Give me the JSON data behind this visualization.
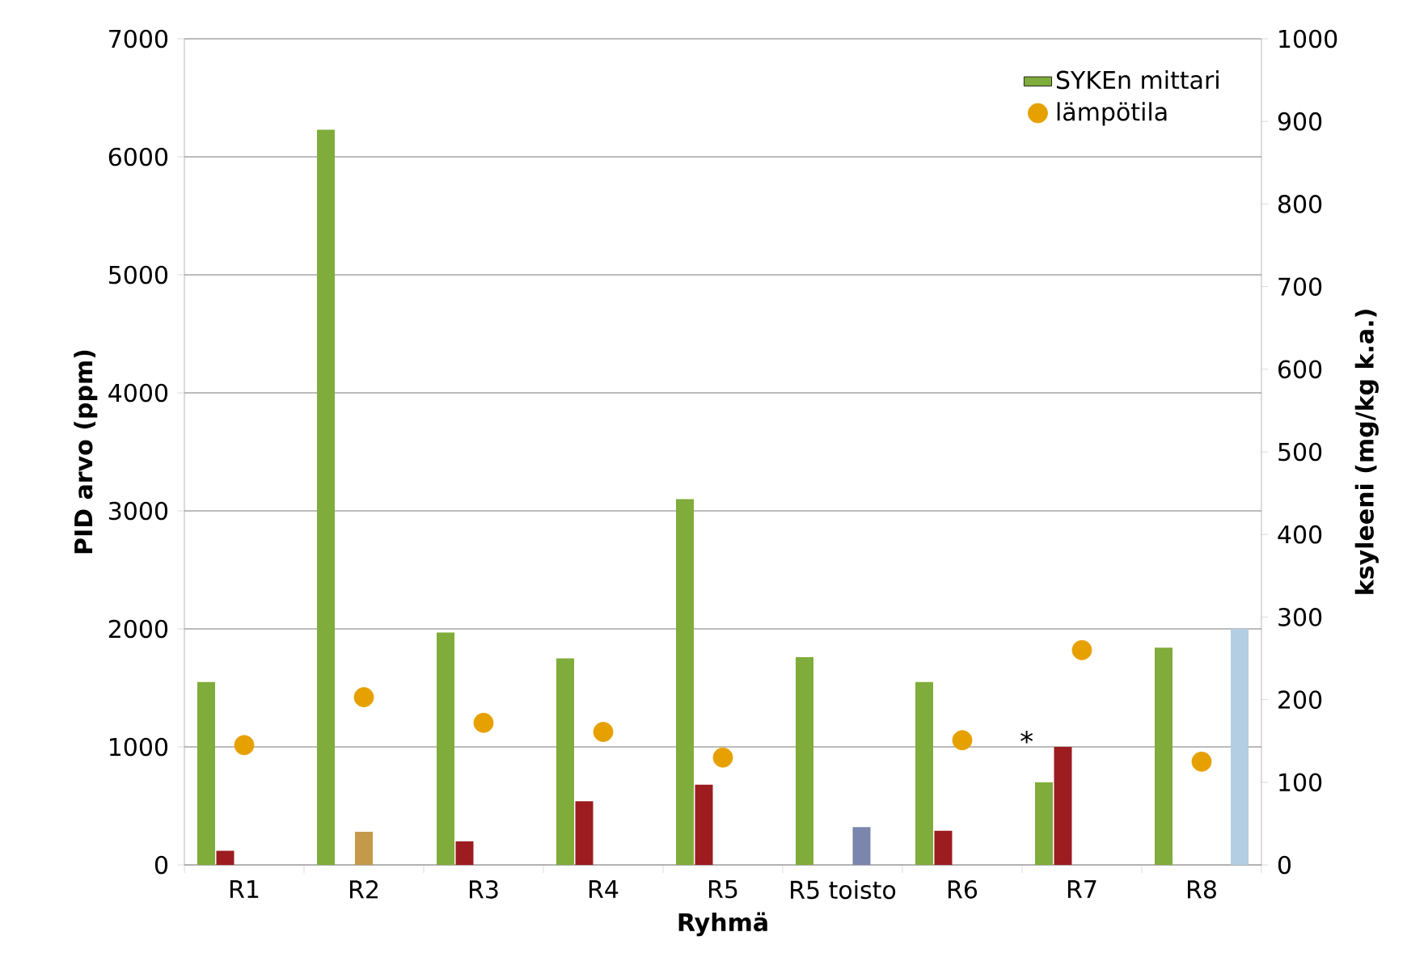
{
  "chart_data": {
    "type": "bar",
    "xlabel": "Ryhmä",
    "ylabel": "PID arvo (ppm)",
    "y2label": "ksyleeni (mg/kg k.a.)",
    "categories": [
      "R1",
      "R2",
      "R3",
      "R4",
      "R5",
      "R5 toisto",
      "R6",
      "R7",
      "R8"
    ],
    "series": [
      {
        "name": "SYKEn mittari",
        "color": "#7fac3a",
        "values": [
          1550,
          6230,
          1970,
          1750,
          3100,
          1760,
          1550,
          700,
          1840
        ]
      },
      {
        "color": "#9c1c20",
        "values": [
          120,
          null,
          200,
          540,
          680,
          null,
          290,
          1000,
          null
        ]
      },
      {
        "color": "#c49a4a",
        "values": [
          null,
          280,
          null,
          null,
          null,
          null,
          null,
          null,
          null
        ]
      },
      {
        "color": "#7a86ad",
        "values": [
          null,
          null,
          null,
          null,
          null,
          320,
          null,
          null,
          null
        ]
      },
      {
        "color": "#b3cde3",
        "values": [
          null,
          null,
          null,
          null,
          null,
          null,
          null,
          null,
          2000
        ]
      },
      {
        "name": "lämpötila",
        "type": "scatter",
        "axis": "y2",
        "color": "#e6a000",
        "values": [
          145,
          203,
          172,
          161,
          130,
          null,
          151,
          260,
          125
        ]
      }
    ],
    "ylim": [
      0,
      7000
    ],
    "yticks": [
      0,
      1000,
      2000,
      3000,
      4000,
      5000,
      6000,
      7000
    ],
    "y2lim": [
      0,
      1000
    ],
    "y2ticks": [
      0,
      100,
      200,
      300,
      400,
      500,
      600,
      700,
      800,
      900,
      1000
    ],
    "grid": "y",
    "legend": "top right",
    "annotations": [
      "*"
    ]
  }
}
